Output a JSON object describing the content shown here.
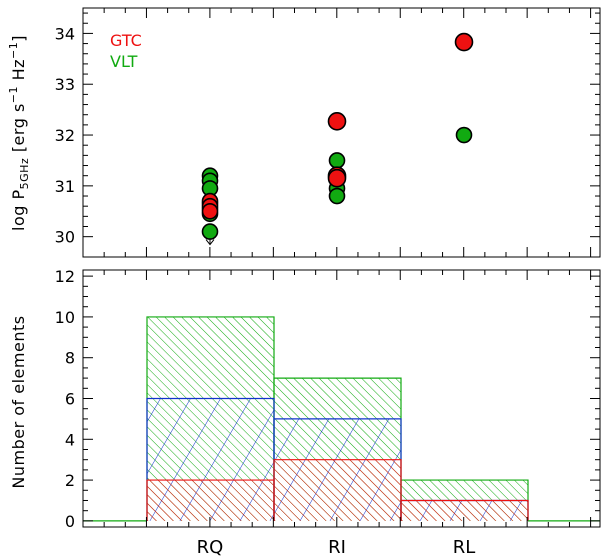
{
  "chart_data": [
    {
      "type": "scatter",
      "ylabel": "log P5GHz [erg s−1 Hz−1]",
      "ylabel_parts": {
        "pre": "log P",
        "sub": "5GHz",
        "mid1": " [erg s",
        "sup1": "−1",
        "mid2": " Hz",
        "sup2": "−1",
        "post": "]"
      },
      "ylim": [
        29.6,
        34.5
      ],
      "yticks": [
        "30",
        "31",
        "32",
        "33",
        "34"
      ],
      "categories": [
        "RQ",
        "RI",
        "RL"
      ],
      "legend_position": "top-left",
      "series": [
        {
          "name": "GTC",
          "color": "#ee1111",
          "points": [
            {
              "category": "RQ",
              "y": 30.7
            },
            {
              "category": "RQ",
              "y": 30.6
            },
            {
              "category": "RQ",
              "y": 30.5
            },
            {
              "category": "RI",
              "y": 32.27
            },
            {
              "category": "RI",
              "y": 31.2
            },
            {
              "category": "RI",
              "y": 31.15
            },
            {
              "category": "RL",
              "y": 33.83
            }
          ]
        },
        {
          "name": "VLT",
          "color": "#11aa11",
          "points": [
            {
              "category": "RQ",
              "y": 31.2
            },
            {
              "category": "RQ",
              "y": 31.1
            },
            {
              "category": "RQ",
              "y": 30.95
            },
            {
              "category": "RQ",
              "y": 30.65
            },
            {
              "category": "RQ",
              "y": 30.55
            },
            {
              "category": "RQ",
              "y": 30.45
            },
            {
              "category": "RQ",
              "y": 30.1
            },
            {
              "category": "RI",
              "y": 31.5
            },
            {
              "category": "RI",
              "y": 30.95
            },
            {
              "category": "RI",
              "y": 30.8
            },
            {
              "category": "RL",
              "y": 32.0
            }
          ]
        }
      ],
      "upper_limit": {
        "category": "RQ",
        "y": 30.1
      }
    },
    {
      "type": "bar",
      "ylabel": "Number of elements",
      "ylim": [
        -0.3,
        12.3
      ],
      "yticks": [
        "0",
        "2",
        "4",
        "6",
        "8",
        "10",
        "12"
      ],
      "categories": [
        "RQ",
        "RI",
        "RL"
      ],
      "series": [
        {
          "color": "#11aa11",
          "hatch": "dense-diagonal",
          "values": [
            10,
            7,
            2
          ]
        },
        {
          "color": "#1133cc",
          "hatch": "sparse-back-diagonal",
          "values": [
            6,
            5,
            1
          ]
        },
        {
          "color": "#ee1111",
          "hatch": "dense-diagonal",
          "values": [
            2,
            3,
            1
          ]
        }
      ]
    }
  ]
}
